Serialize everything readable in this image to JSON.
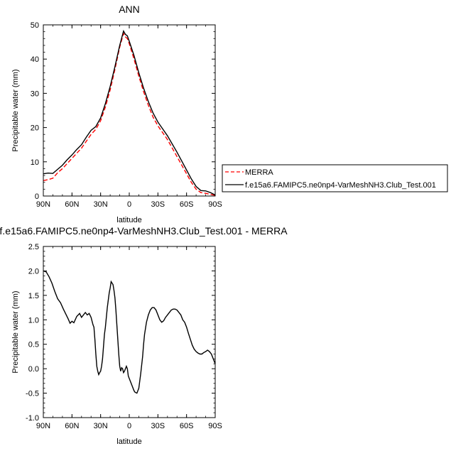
{
  "chart_data": [
    {
      "type": "line",
      "title": "ANN",
      "xlabel": "latitude",
      "ylabel": "Precipitable water (mm)",
      "xlim": [
        90,
        -90
      ],
      "ylim": [
        0,
        50
      ],
      "x_ticks": [
        90,
        60,
        30,
        0,
        -30,
        -60,
        -90
      ],
      "x_tick_labels": [
        "90N",
        "60N",
        "30N",
        "0",
        "30S",
        "60S",
        "90S"
      ],
      "y_ticks": [
        0,
        10,
        20,
        30,
        40,
        50
      ],
      "y_tick_labels": [
        "0",
        "10",
        "20",
        "30",
        "40",
        "50"
      ],
      "legend_position": "right",
      "series": [
        {
          "name": "MERRA",
          "color": "#ff0000",
          "dash": "dashed",
          "x": [
            90,
            85,
            80,
            75,
            70,
            65,
            60,
            55,
            50,
            45,
            40,
            35,
            30,
            25,
            20,
            15,
            10,
            6,
            4,
            2,
            0,
            -5,
            -10,
            -15,
            -20,
            -25,
            -30,
            -35,
            -40,
            -45,
            -50,
            -55,
            -60,
            -65,
            -70,
            -75,
            -80,
            -85,
            -90
          ],
          "y": [
            4.5,
            4.8,
            5.2,
            6.8,
            8.0,
            9.5,
            11.0,
            12.5,
            14.0,
            16.0,
            18.0,
            19.5,
            22.0,
            26.0,
            31.0,
            37.0,
            43.5,
            47.5,
            46.5,
            46.0,
            44.5,
            40.0,
            35.0,
            30.5,
            26.5,
            23.0,
            20.5,
            18.5,
            16.5,
            14.0,
            11.5,
            9.0,
            6.5,
            4.0,
            2.0,
            1.0,
            0.8,
            0.5,
            0.2
          ]
        },
        {
          "name": "f.e15a6.FAMIPC5.ne0np4-VarMeshNH3.Club_Test.001",
          "color": "#000000",
          "dash": "solid",
          "x": [
            90,
            85,
            80,
            75,
            70,
            65,
            60,
            55,
            50,
            45,
            40,
            35,
            30,
            25,
            20,
            15,
            10,
            6,
            4,
            2,
            0,
            -5,
            -10,
            -15,
            -20,
            -25,
            -30,
            -35,
            -40,
            -45,
            -50,
            -55,
            -60,
            -65,
            -70,
            -75,
            -80,
            -85,
            -90
          ],
          "y": [
            6.5,
            6.7,
            6.6,
            7.8,
            9.0,
            10.6,
            12.0,
            13.6,
            15.0,
            17.2,
            19.2,
            20.3,
            22.8,
            27.0,
            32.0,
            37.8,
            44.0,
            48.2,
            47.2,
            46.8,
            45.2,
            41.0,
            36.0,
            31.5,
            27.6,
            24.2,
            21.6,
            19.6,
            17.6,
            15.2,
            12.8,
            10.2,
            7.6,
            5.0,
            2.8,
            1.6,
            1.5,
            1.0,
            0.3
          ]
        }
      ]
    },
    {
      "type": "line",
      "title": "f.e15a6.FAMIPC5.ne0np4-VarMeshNH3.Club_Test.001 - MERRA",
      "xlabel": "latitude",
      "ylabel": "Precipitable water (mm)",
      "xlim": [
        90,
        -90
      ],
      "ylim": [
        -1.0,
        2.5
      ],
      "x_ticks": [
        90,
        60,
        30,
        0,
        -30,
        -60,
        -90
      ],
      "x_tick_labels": [
        "90N",
        "60N",
        "30N",
        "0",
        "30S",
        "60S",
        "90S"
      ],
      "y_ticks": [
        -1.0,
        -0.5,
        0.0,
        0.5,
        1.0,
        1.5,
        2.0,
        2.5
      ],
      "y_tick_labels": [
        "-1.0",
        "-0.5",
        "0.0",
        "0.5",
        "1.0",
        "1.5",
        "2.0",
        "2.5"
      ],
      "series": [
        {
          "color": "#000000",
          "dash": "solid",
          "x": [
            90,
            87,
            84,
            81,
            78,
            75,
            72,
            69,
            66,
            64,
            62,
            60,
            58,
            55,
            52,
            50,
            48,
            46,
            44,
            42,
            40,
            38,
            37,
            36,
            35,
            34,
            33,
            32,
            31,
            30,
            29,
            28,
            27,
            26,
            25,
            24,
            23,
            22,
            21,
            20,
            19,
            18,
            17,
            16,
            15,
            14,
            13,
            12,
            11,
            10,
            9,
            8,
            7,
            6,
            5,
            4,
            3,
            2,
            1,
            0,
            -1,
            -2,
            -3,
            -4,
            -5,
            -6,
            -8,
            -10,
            -12,
            -14,
            -15,
            -16,
            -18,
            -20,
            -22,
            -24,
            -26,
            -28,
            -30,
            -32,
            -34,
            -36,
            -38,
            -40,
            -42,
            -44,
            -46,
            -48,
            -50,
            -52,
            -54,
            -56,
            -58,
            -60,
            -62,
            -64,
            -66,
            -68,
            -70,
            -72,
            -74,
            -76,
            -78,
            -80,
            -82,
            -84,
            -86,
            -88,
            -90
          ],
          "y": [
            2.0,
            1.98,
            1.88,
            1.75,
            1.58,
            1.43,
            1.35,
            1.22,
            1.1,
            1.02,
            0.93,
            0.97,
            0.94,
            1.07,
            1.13,
            1.05,
            1.1,
            1.15,
            1.1,
            1.13,
            1.05,
            0.9,
            0.85,
            0.6,
            0.3,
            0.05,
            -0.05,
            -0.12,
            -0.08,
            -0.05,
            0.05,
            0.2,
            0.45,
            0.7,
            0.85,
            1.05,
            1.25,
            1.4,
            1.55,
            1.65,
            1.78,
            1.75,
            1.72,
            1.6,
            1.45,
            1.2,
            0.9,
            0.6,
            0.3,
            0.05,
            -0.05,
            0.02,
            0.0,
            -0.08,
            -0.05,
            0.0,
            0.05,
            0.0,
            -0.15,
            -0.2,
            -0.25,
            -0.3,
            -0.35,
            -0.4,
            -0.45,
            -0.48,
            -0.5,
            -0.4,
            -0.1,
            0.25,
            0.5,
            0.7,
            0.95,
            1.1,
            1.2,
            1.25,
            1.25,
            1.2,
            1.1,
            1.0,
            0.95,
            0.98,
            1.05,
            1.1,
            1.15,
            1.2,
            1.22,
            1.22,
            1.2,
            1.15,
            1.1,
            1.0,
            0.95,
            0.85,
            0.72,
            0.6,
            0.48,
            0.4,
            0.35,
            0.32,
            0.3,
            0.3,
            0.33,
            0.35,
            0.38,
            0.35,
            0.3,
            0.2,
            0.1
          ]
        }
      ]
    }
  ]
}
